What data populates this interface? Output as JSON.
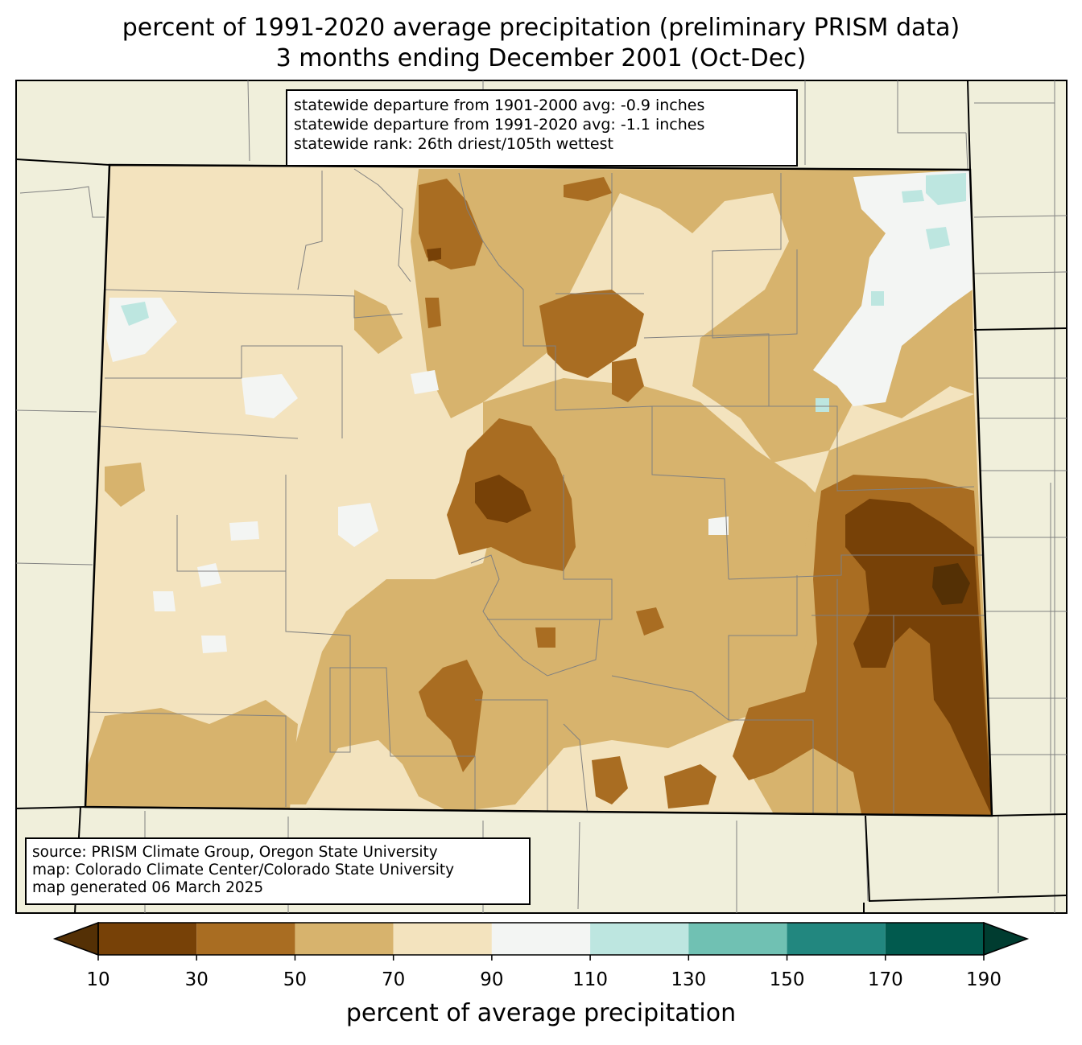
{
  "title": {
    "line1": "percent of 1991-2020 average precipitation (preliminary PRISM data)",
    "line2": "3 months ending December 2001 (Oct-Dec)"
  },
  "stats": {
    "line1": "statewide departure from 1901-2000 avg: -0.9 inches",
    "line2": "statewide departure from 1991-2020 avg: -1.1 inches",
    "line3": "statewide rank: 26th driest/105th wettest"
  },
  "credits": {
    "line1": "source: PRISM Climate Group, Oregon State University",
    "line2": "map: Colorado Climate Center/Colorado State University",
    "line3": "map generated 06 March 2025"
  },
  "colorbar": {
    "label": "percent of average precipitation",
    "ticks": [
      "10",
      "30",
      "50",
      "70",
      "90",
      "110",
      "130",
      "150",
      "170",
      "190"
    ],
    "under_color": "#543005",
    "over_color": "#003c30",
    "bins": [
      {
        "from": 10,
        "to": 30,
        "color": "#774107"
      },
      {
        "from": 30,
        "to": 50,
        "color": "#a96d22"
      },
      {
        "from": 50,
        "to": 70,
        "color": "#d7b36d"
      },
      {
        "from": 70,
        "to": 90,
        "color": "#f3e3be"
      },
      {
        "from": 90,
        "to": 110,
        "color": "#f3f5f3"
      },
      {
        "from": 110,
        "to": 130,
        "color": "#bde6e0"
      },
      {
        "from": 130,
        "to": 150,
        "color": "#70c1b3"
      },
      {
        "from": 150,
        "to": 170,
        "color": "#22877f"
      },
      {
        "from": 170,
        "to": 190,
        "color": "#015a4e"
      }
    ]
  },
  "colors": {
    "background_land": "#f0efdb",
    "county_lines": "#808080",
    "state_lines": "#000000"
  }
}
